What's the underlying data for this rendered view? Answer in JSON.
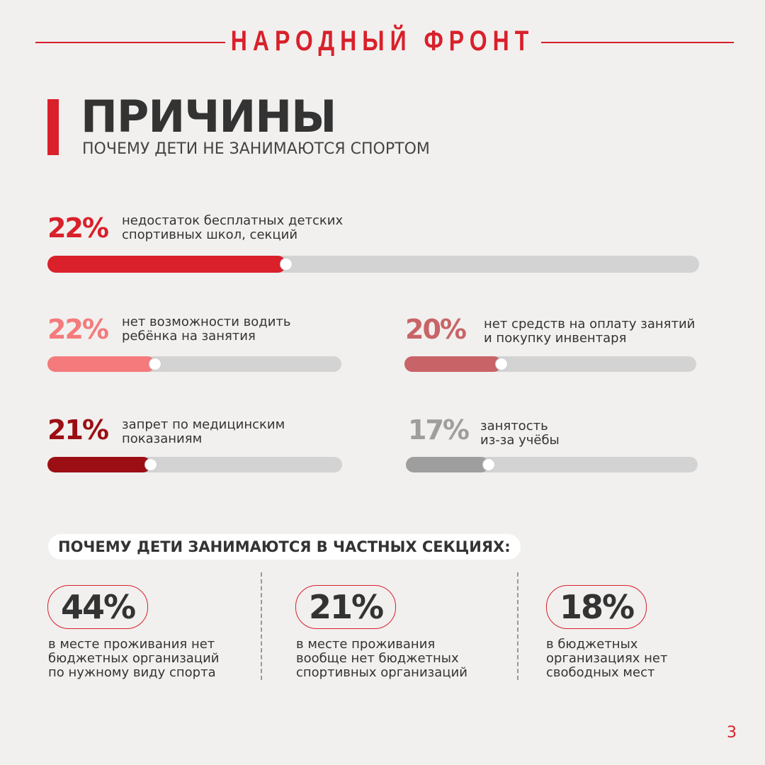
{
  "header": {
    "title": "НАРОДНЫЙ ФРОНТ"
  },
  "title": "ПРИЧИНЫ",
  "subtitle": "ПОЧЕМУ ДЕТИ НЕ ЗАНИМАЮТСЯ СПОРТОМ",
  "reasons": [
    {
      "value": 22,
      "label": "22%",
      "lines": [
        "недостаток бесплатных детских",
        "спортивных школ, секций"
      ],
      "color": "#d9202b"
    },
    {
      "value": 22,
      "label": "22%",
      "lines": [
        "нет возможности водить",
        "ребёнка на занятия"
      ],
      "color": "#f47a7c"
    },
    {
      "value": 20,
      "label": "20%",
      "lines": [
        "нет средств на оплату занятий",
        "и покупку инвентаря"
      ],
      "color": "#c86467"
    },
    {
      "value": 21,
      "label": "21%",
      "lines": [
        "запрет по медицинским",
        "показаниям"
      ],
      "color": "#9b0f14"
    },
    {
      "value": 17,
      "label": "17%",
      "lines": [
        "занятость",
        "из-за учёбы"
      ],
      "color": "#9e9e9e"
    }
  ],
  "private": {
    "heading": "ПОЧЕМУ ДЕТИ ЗАНИМАЮТСЯ В ЧАСТНЫХ СЕКЦИЯХ:",
    "items": [
      {
        "value": 44,
        "label": "44%",
        "lines": [
          "в месте проживания нет",
          "бюджетных организаций",
          "по нужному виду спорта"
        ]
      },
      {
        "value": 21,
        "label": "21%",
        "lines": [
          "в месте проживания",
          "вообще нет бюджетных",
          "спортивных организаций"
        ]
      },
      {
        "value": 18,
        "label": "18%",
        "lines": [
          "в бюджетных",
          "организациях нет",
          "свободных мест"
        ]
      }
    ]
  },
  "page_number": 3
}
